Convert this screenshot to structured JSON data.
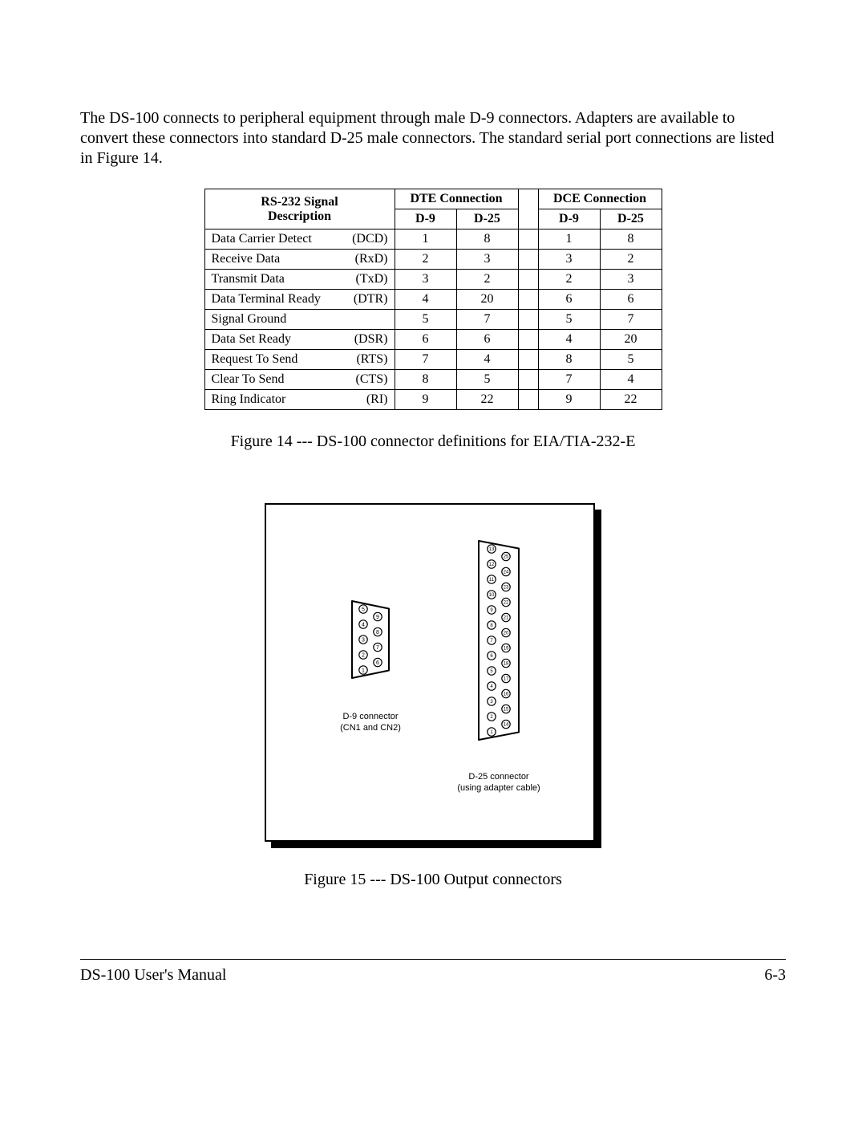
{
  "intro": "The DS-100 connects to peripheral equipment through male D-9 connectors.  Adapters are available to convert these connectors into standard D-25 male connectors.  The standard serial port connections are listed in Figure 14.",
  "table": {
    "header": {
      "desc_line1": "RS-232 Signal",
      "desc_line2": "Description",
      "dte": "DTE Connection",
      "dce": "DCE Connection",
      "d9": "D-9",
      "d25": "D-25"
    },
    "rows": [
      {
        "name": "Data Carrier Detect",
        "abbr": "(DCD)",
        "dte_d9": "1",
        "dte_d25": "8",
        "dce_d9": "1",
        "dce_d25": "8"
      },
      {
        "name": "Receive Data",
        "abbr": "(RxD)",
        "dte_d9": "2",
        "dte_d25": "3",
        "dce_d9": "3",
        "dce_d25": "2"
      },
      {
        "name": "Transmit Data",
        "abbr": "(TxD)",
        "dte_d9": "3",
        "dte_d25": "2",
        "dce_d9": "2",
        "dce_d25": "3"
      },
      {
        "name": "Data Terminal Ready",
        "abbr": "(DTR)",
        "dte_d9": "4",
        "dte_d25": "20",
        "dce_d9": "6",
        "dce_d25": "6"
      },
      {
        "name": "Signal Ground",
        "abbr": "",
        "dte_d9": "5",
        "dte_d25": "7",
        "dce_d9": "5",
        "dce_d25": "7"
      },
      {
        "name": "Data Set Ready",
        "abbr": "(DSR)",
        "dte_d9": "6",
        "dte_d25": "6",
        "dce_d9": "4",
        "dce_d25": "20"
      },
      {
        "name": "Request To Send",
        "abbr": "(RTS)",
        "dte_d9": "7",
        "dte_d25": "4",
        "dce_d9": "8",
        "dce_d25": "5"
      },
      {
        "name": "Clear To Send",
        "abbr": "(CTS)",
        "dte_d9": "8",
        "dte_d25": "5",
        "dce_d9": "7",
        "dce_d25": "4"
      },
      {
        "name": "Ring Indicator",
        "abbr": "(RI)",
        "dte_d9": "9",
        "dte_d25": "22",
        "dce_d9": "9",
        "dce_d25": "22"
      }
    ]
  },
  "caption14": "Figure 14 --- DS-100 connector definitions for EIA/TIA-232-E",
  "figure15": {
    "d9": {
      "label1": "D-9 connector",
      "label2": "(CN1 and CN2)",
      "left_pins": [
        5,
        4,
        3,
        2,
        1
      ],
      "right_pins": [
        9,
        8,
        7,
        6
      ],
      "stroke": "#000000",
      "fill": "#ffffff",
      "line_width": 2
    },
    "d25": {
      "label1": "D-25 connector",
      "label2": "(using adapter cable)",
      "left_pins": [
        13,
        12,
        11,
        10,
        9,
        8,
        7,
        6,
        5,
        4,
        3,
        2,
        1
      ],
      "right_pins": [
        25,
        24,
        23,
        22,
        21,
        20,
        19,
        18,
        17,
        16,
        15,
        14
      ],
      "stroke": "#000000",
      "fill": "#ffffff",
      "line_width": 2
    }
  },
  "caption15": "Figure 15 --- DS-100 Output connectors",
  "footer": {
    "left": "DS-100 User's Manual",
    "right": "6-3"
  }
}
